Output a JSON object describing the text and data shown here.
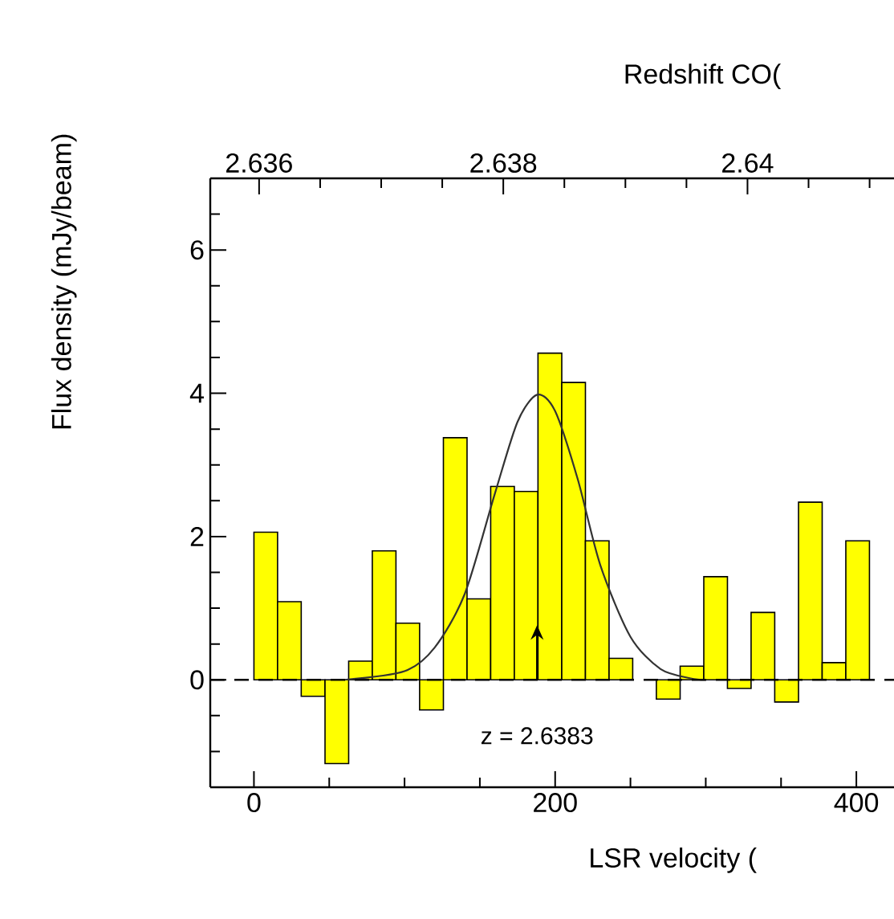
{
  "chart_data": {
    "type": "histogram",
    "xlabel": "LSR velocity (",
    "ylabel": "Flux density (mJy/beam)",
    "x2label": "Redshift CO(",
    "bins": [
      0,
      15.7,
      31.4,
      47.2,
      62.9,
      78.6,
      94.3,
      110,
      125.8,
      141.5,
      157.2,
      172.9,
      188.6,
      204.4,
      220.1,
      235.8,
      251.5,
      267.2,
      283,
      298.7,
      314.4,
      330.1,
      345.8,
      361.6,
      377.3,
      393,
      408.7,
      424.4
    ],
    "values": [
      2.06,
      1.09,
      -0.23,
      -1.17,
      0.26,
      1.8,
      0.79,
      -0.42,
      3.38,
      1.13,
      2.7,
      2.63,
      4.56,
      4.15,
      1.94,
      0.3,
      null,
      -0.27,
      0.19,
      1.44,
      -0.12,
      0.94,
      -0.31,
      2.48,
      0.24,
      1.94,
      null
    ],
    "color": "#ffff00",
    "series": [
      {
        "type": "line",
        "color": "#333333",
        "x": [
          60,
          100,
          120,
          140,
          160,
          175,
          188,
          200,
          215,
          230,
          250,
          270,
          290,
          300
        ],
        "values": [
          0,
          0.12,
          0.45,
          1.2,
          2.6,
          3.6,
          3.98,
          3.75,
          2.8,
          1.6,
          0.6,
          0.15,
          0.02,
          0
        ]
      }
    ],
    "xlim": [
      -29,
      425
    ],
    "ylim": [
      -1.5,
      7
    ],
    "xticks": [
      0,
      {
        "value": 50,
        "label": null
      },
      {
        "value": 100,
        "label": null
      },
      {
        "value": 150,
        "label": null
      },
      200,
      {
        "value": 250,
        "label": null
      },
      {
        "value": 300,
        "label": null
      },
      {
        "value": 350,
        "label": null
      },
      400
    ],
    "yticks": [
      {
        "value": -1,
        "label": null
      },
      {
        "value": -0.5,
        "label": null
      },
      0,
      {
        "value": 0.5,
        "label": null
      },
      {
        "value": 1,
        "label": null
      },
      {
        "value": 1.5,
        "label": null
      },
      2,
      {
        "value": 2.5,
        "label": null
      },
      {
        "value": 3,
        "label": null
      },
      {
        "value": 3.5,
        "label": null
      },
      4,
      {
        "value": 4.5,
        "label": null
      },
      {
        "value": 5,
        "label": null
      },
      {
        "value": 5.5,
        "label": null
      },
      6,
      {
        "value": 6.5,
        "label": null
      }
    ],
    "x2lim": [
      2.6356,
      2.6412
    ],
    "x2ticks": [
      2.636,
      {
        "value": 2.6365,
        "label": null
      },
      {
        "value": 2.637,
        "label": null
      },
      {
        "value": 2.6375,
        "label": null
      },
      2.638,
      {
        "value": 2.6385,
        "label": null
      },
      {
        "value": 2.639,
        "label": null
      },
      {
        "value": 2.6395,
        "label": null
      },
      2.64,
      {
        "value": 2.6405,
        "label": null
      },
      {
        "value": 2.641,
        "label": null
      }
    ],
    "ref_lines": [
      {
        "axis": "y",
        "value": 0,
        "line_style": "dashed",
        "color": "#000000"
      }
    ],
    "annotations": [
      {
        "text": "z = 2.6383",
        "x": 188,
        "y": 0
      }
    ]
  }
}
